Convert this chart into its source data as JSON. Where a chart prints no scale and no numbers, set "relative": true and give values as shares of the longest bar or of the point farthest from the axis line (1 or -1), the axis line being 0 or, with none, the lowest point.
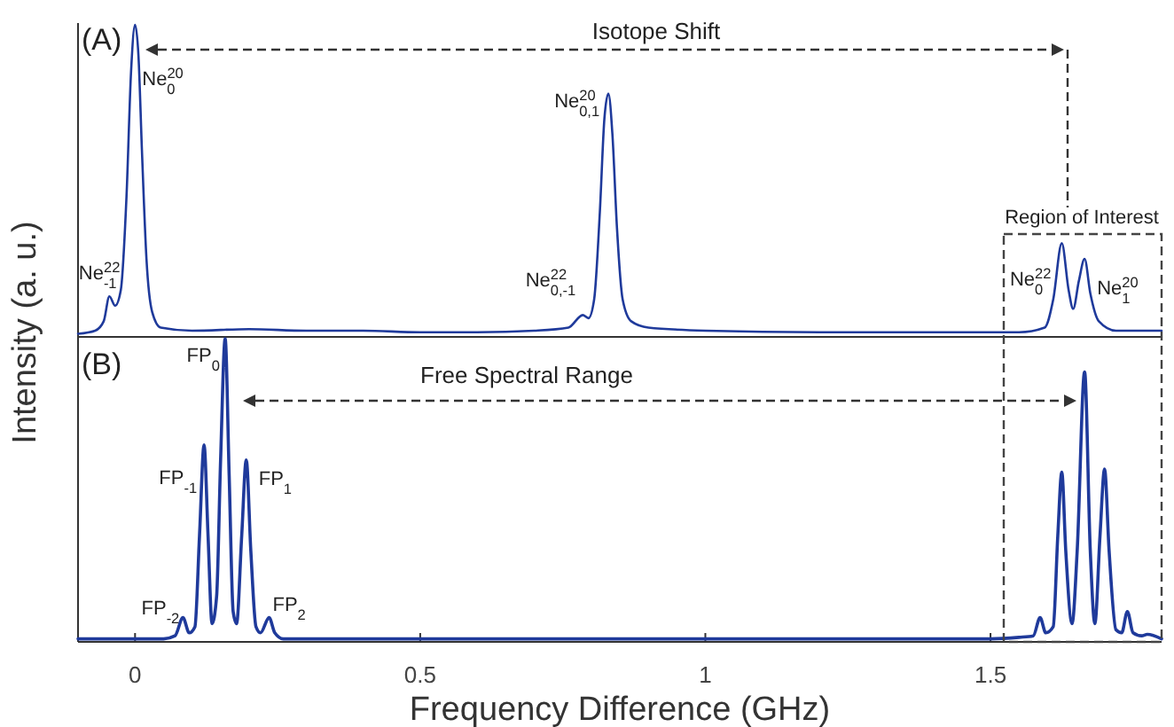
{
  "chart_data": [
    {
      "type": "line",
      "relative": true,
      "ylabel": "Intensity (a. u.)",
      "xlim": [
        -0.1,
        1.8
      ],
      "tick_labels": false,
      "annotations": [
        "(A)",
        "Isotope Shift",
        "Region of Interest",
        {
          "text": "Ne$^{20}$$_{0}$",
          "x": 0,
          "y": 1.0
        },
        {
          "text": "Ne$^{22}$$_{-1}$",
          "x": -0.045,
          "y": 0.15
        },
        {
          "text": "Ne$^{20}$$_{0,1}$",
          "x": 0.83,
          "y": 0.78
        },
        {
          "text": "Ne$^{22}$$_{0,-1}$",
          "x": 0.785,
          "y": 0.07
        },
        {
          "text": "Ne$^{22}$$_{0}$",
          "x": 1.625,
          "y": 0.3
        },
        {
          "text": "Ne$^{20}$$_{1}$",
          "x": 1.665,
          "y": 0.25
        }
      ],
      "series": [
        {
          "color": "#1f3a9b",
          "x": [
            -0.1,
            -0.07,
            -0.055,
            -0.045,
            -0.035,
            -0.025,
            -0.015,
            -0.007,
            0,
            0.006,
            0.012,
            0.02,
            0.03,
            0.045,
            0.1,
            0.2,
            0.3,
            0.4,
            0.5,
            0.6,
            0.7,
            0.76,
            0.785,
            0.795,
            0.805,
            0.815,
            0.823,
            0.83,
            0.837,
            0.845,
            0.855,
            0.87,
            0.9,
            1.0,
            1.2,
            1.4,
            1.55,
            1.595,
            1.61,
            1.625,
            1.637,
            1.645,
            1.655,
            1.665,
            1.675,
            1.69,
            1.72,
            1.8
          ],
          "values": [
            0.01,
            0.02,
            0.05,
            0.13,
            0.1,
            0.15,
            0.45,
            0.85,
            1.0,
            0.9,
            0.6,
            0.25,
            0.08,
            0.03,
            0.02,
            0.025,
            0.02,
            0.02,
            0.015,
            0.015,
            0.02,
            0.03,
            0.07,
            0.06,
            0.12,
            0.4,
            0.7,
            0.78,
            0.65,
            0.35,
            0.12,
            0.05,
            0.03,
            0.02,
            0.015,
            0.015,
            0.015,
            0.03,
            0.12,
            0.3,
            0.15,
            0.09,
            0.18,
            0.25,
            0.14,
            0.05,
            0.02,
            0.02
          ]
        }
      ]
    },
    {
      "type": "line",
      "relative": true,
      "xlabel": "Frequency Difference (GHz)",
      "xlim": [
        -0.1,
        1.8
      ],
      "xticks": [
        0,
        0.5,
        1,
        1.5
      ],
      "tick_labels": "x",
      "annotations": [
        "(B)",
        "Free Spectral Range",
        {
          "text": "FP$_{0}$",
          "x": 0.158,
          "y": 1.0
        },
        {
          "text": "FP$_{-1}$",
          "x": 0.121,
          "y": 0.65
        },
        {
          "text": "FP$_{1}$",
          "x": 0.195,
          "y": 0.6
        },
        {
          "text": "FP$_{-2}$",
          "x": 0.084,
          "y": 0.08
        },
        {
          "text": "FP$_{2}$",
          "x": 0.235,
          "y": 0.08
        }
      ],
      "series": [
        {
          "color": "#1f3a9b",
          "x": [
            -0.1,
            0.05,
            0.07,
            0.084,
            0.095,
            0.105,
            0.113,
            0.121,
            0.128,
            0.135,
            0.143,
            0.15,
            0.158,
            0.165,
            0.172,
            0.178,
            0.187,
            0.195,
            0.203,
            0.212,
            0.22,
            0.235,
            0.245,
            0.26,
            0.5,
            1.0,
            1.5,
            1.55,
            1.575,
            1.587,
            1.597,
            1.61,
            1.618,
            1.625,
            1.632,
            1.643,
            1.652,
            1.665,
            1.675,
            1.683,
            1.692,
            1.7,
            1.708,
            1.72,
            1.73,
            1.74,
            1.75,
            1.765,
            1.775,
            1.8
          ],
          "values": [
            0.01,
            0.01,
            0.02,
            0.08,
            0.03,
            0.05,
            0.35,
            0.65,
            0.35,
            0.06,
            0.15,
            0.6,
            1.0,
            0.55,
            0.1,
            0.06,
            0.35,
            0.6,
            0.3,
            0.05,
            0.03,
            0.08,
            0.03,
            0.01,
            0.01,
            0.01,
            0.01,
            0.015,
            0.02,
            0.08,
            0.03,
            0.05,
            0.35,
            0.56,
            0.3,
            0.06,
            0.3,
            0.89,
            0.3,
            0.06,
            0.35,
            0.57,
            0.3,
            0.04,
            0.03,
            0.1,
            0.03,
            0.02,
            0.025,
            0.01
          ]
        }
      ]
    }
  ]
}
